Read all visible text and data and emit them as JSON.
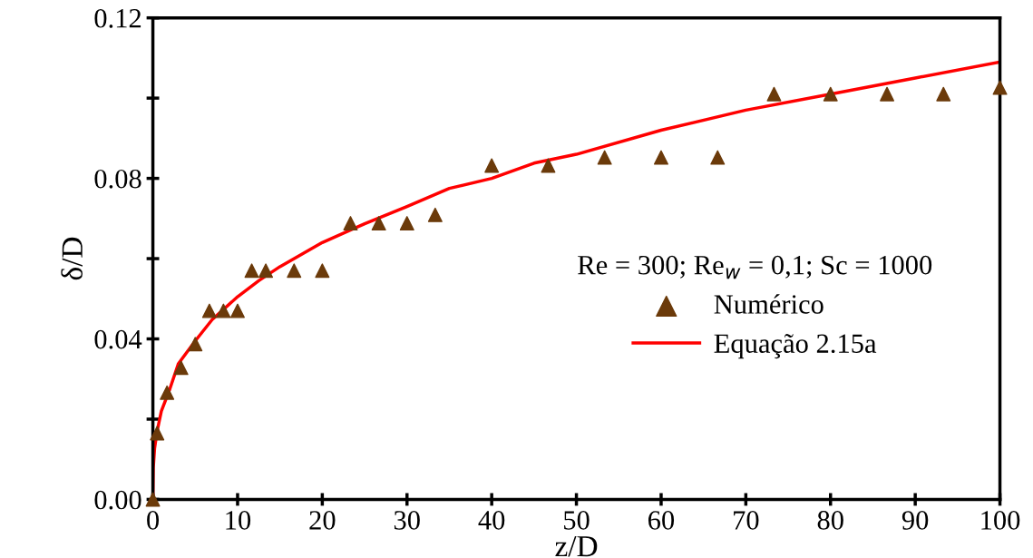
{
  "chart_data": {
    "type": "scatter",
    "xlabel": "z/D",
    "ylabel": "δ/D",
    "legend_title": "Re = 300; Re$_{w}$ = 0,1; Sc = 1000",
    "legend": "right",
    "xlim": [
      0,
      100
    ],
    "xticks": [
      0,
      10,
      20,
      30,
      40,
      50,
      60,
      70,
      80,
      90,
      100
    ],
    "ylim": [
      0,
      0.12
    ],
    "yticks": [
      {
        "value": 0,
        "label": "0.00"
      },
      {
        "value": 0.02,
        "label": null
      },
      {
        "value": 0.04,
        "label": "0.04"
      },
      {
        "value": 0.06,
        "label": null
      },
      {
        "value": 0.08,
        "label": "0.08"
      },
      {
        "value": 0.1,
        "label": null
      },
      {
        "value": 0.12,
        "label": "0.12"
      }
    ],
    "grid": false,
    "series": [
      {
        "name": "Numérico",
        "marker": "triangle",
        "color": "#6b3a0a",
        "x": [
          0,
          0.5,
          1.67,
          3.33,
          5,
          6.67,
          8.33,
          10,
          11.67,
          13.33,
          16.67,
          20,
          23.33,
          26.67,
          30,
          33.33,
          40,
          46.67,
          53.33,
          60,
          66.67,
          73.33,
          80,
          86.67,
          93.33,
          100
        ],
        "values": [
          0,
          0.0165,
          0.0266,
          0.0328,
          0.0387,
          0.047,
          0.047,
          0.047,
          0.057,
          0.057,
          0.057,
          0.057,
          0.0688,
          0.0688,
          0.0688,
          0.0709,
          0.0832,
          0.0832,
          0.0852,
          0.0852,
          0.0852,
          0.101,
          0.101,
          0.101,
          0.101,
          0.1026
        ]
      },
      {
        "name": "Equação 2.15a",
        "type": "line",
        "marker": "none",
        "line_style": "solid",
        "color": "#ff0000",
        "x": [
          0,
          0.05,
          0.2,
          0.5,
          1,
          2,
          3,
          5,
          7,
          10,
          12.5,
          15,
          20,
          25,
          30,
          35,
          40,
          45,
          50,
          60,
          70,
          80,
          90,
          100
        ],
        "values": [
          0,
          0.008,
          0.0127,
          0.017,
          0.022,
          0.0275,
          0.0338,
          0.0395,
          0.0448,
          0.0505,
          0.0545,
          0.058,
          0.064,
          0.0687,
          0.073,
          0.0775,
          0.08,
          0.0838,
          0.086,
          0.092,
          0.097,
          0.101,
          0.105,
          0.109
        ]
      }
    ]
  }
}
